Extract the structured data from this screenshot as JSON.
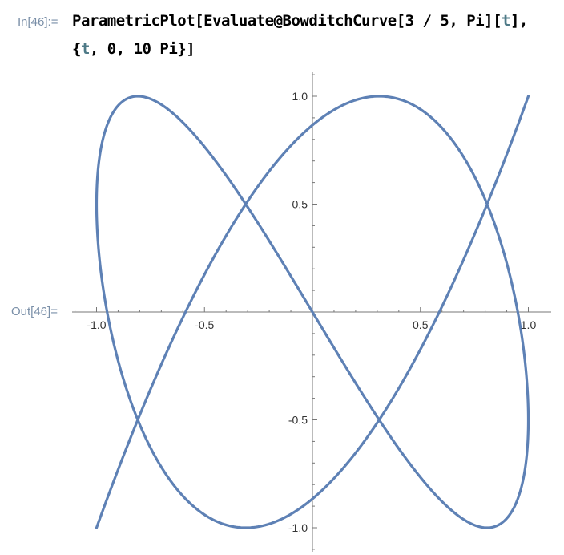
{
  "input_label": "In[46]:=",
  "output_label": "Out[46]=",
  "code": {
    "line1_prefix": "ParametricPlot[Evaluate@BowditchCurve[3 / 5, Pi][",
    "line1_var": "t",
    "line1_suffix": "],",
    "line2_prefix": "{",
    "line2_var": "t",
    "line2_suffix": ", 0, 10 Pi}]"
  },
  "colors": {
    "curve": "#5e81b5",
    "axis": "#777777",
    "label_text": "#7a8fa8"
  },
  "chart_data": {
    "type": "line",
    "title": "",
    "curve": "BowditchCurve[3/5, Pi]",
    "x_formula": "sin(3/5 * t + Pi)",
    "y_formula": "sin(t)",
    "t_range": [
      0,
      31.4159
    ],
    "xlim": [
      -1.0,
      1.0
    ],
    "ylim": [
      -1.0,
      1.0
    ],
    "x_ticks": [
      "-1.0",
      "-0.5",
      "0.5",
      "1.0"
    ],
    "x_tick_values": [
      -1.0,
      -0.5,
      0.5,
      1.0
    ],
    "y_ticks": [
      "1.0",
      "0.5",
      "-0.5",
      "-1.0"
    ],
    "y_tick_values": [
      1.0,
      0.5,
      -0.5,
      -1.0
    ],
    "minor_step": 0.1,
    "xlabel": "",
    "ylabel": ""
  }
}
